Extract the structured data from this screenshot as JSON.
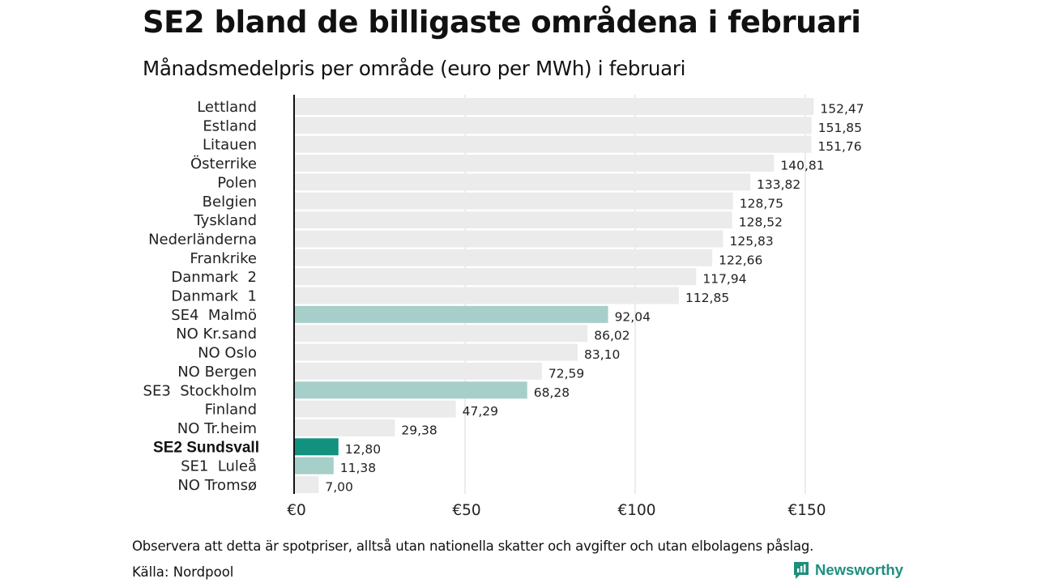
{
  "title": "SE2 bland de billigaste områdena i februari",
  "subtitle": "Månadsmedelpris per område (euro per MWh) i februari",
  "note": "Observera att detta är spotpriser, alltså utan nationella skatter och avgifter och utan elbolagens påslag.",
  "source": "Källa: Nordpool",
  "brand": {
    "name": "Newsworthy",
    "icon": "newsworthy-logo-icon",
    "color": "#1e8f7e"
  },
  "colors": {
    "default_bar": "#ebebeb",
    "swedish_bar": "#a6cfca",
    "highlight_bar": "#13917f",
    "grid": "#d9d9d9",
    "axis": "#111111"
  },
  "chart_data": {
    "type": "bar",
    "orientation": "horizontal",
    "categories": [
      "Lettland",
      "Estland",
      "Litauen",
      "Österrike",
      "Polen",
      "Belgien",
      "Tyskland",
      "Nederländerna",
      "Frankrike",
      "Danmark  2",
      "Danmark  1",
      "SE4  Malmö",
      "NO Kr.sand",
      "NO Oslo",
      "NO Bergen",
      "SE3  Stockholm",
      "Finland",
      "NO Tr.heim",
      "SE2 Sundsvall",
      "SE1  Luleå",
      "NO Tromsø"
    ],
    "values": [
      152.47,
      151.85,
      151.76,
      140.81,
      133.82,
      128.75,
      128.52,
      125.83,
      122.66,
      117.94,
      112.85,
      92.04,
      86.02,
      83.1,
      72.59,
      68.28,
      47.29,
      29.38,
      12.8,
      11.38,
      7.0
    ],
    "value_labels": [
      "152,47",
      "151,85",
      "151,76",
      "140,81",
      "133,82",
      "128,75",
      "128,52",
      "125,83",
      "122,66",
      "117,94",
      "112,85",
      "92,04",
      "86,02",
      "83,10",
      "72,59",
      "68,28",
      "47,29",
      "29,38",
      "12,80",
      "11,38",
      "7,00"
    ],
    "bar_style": [
      "default",
      "default",
      "default",
      "default",
      "default",
      "default",
      "default",
      "default",
      "default",
      "default",
      "default",
      "swedish",
      "default",
      "default",
      "default",
      "swedish",
      "default",
      "default",
      "highlight",
      "swedish",
      "default"
    ],
    "xlim": [
      0,
      165
    ],
    "xticks": [
      0,
      50,
      100,
      150
    ],
    "xtick_labels": [
      "€0",
      "€50",
      "€100",
      "€150"
    ],
    "grid": true,
    "xlabel": "",
    "ylabel": ""
  }
}
